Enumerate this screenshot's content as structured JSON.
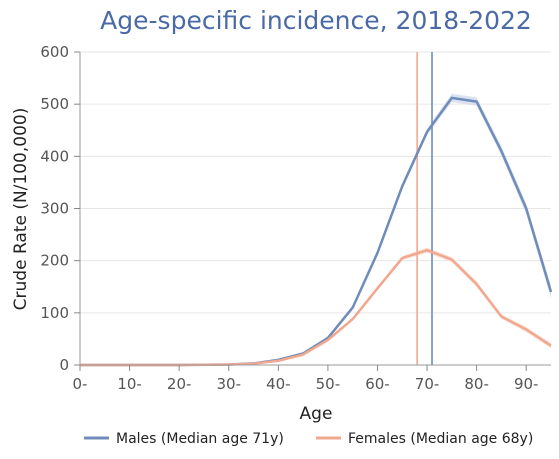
{
  "chart_data": {
    "type": "line",
    "title": "Age-specific incidence, 2018-2022",
    "xlabel": "Age",
    "ylabel": "Crude Rate (N/100,000)",
    "x": [
      0,
      5,
      10,
      15,
      20,
      25,
      30,
      35,
      40,
      45,
      50,
      55,
      60,
      65,
      70,
      75,
      80,
      85,
      90,
      95
    ],
    "xlim": [
      0,
      95
    ],
    "ylim": [
      0,
      600
    ],
    "x_ticks": [
      {
        "value": 0,
        "label": "0-"
      },
      {
        "value": 10,
        "label": "10-"
      },
      {
        "value": 20,
        "label": "20-"
      },
      {
        "value": 30,
        "label": "30-"
      },
      {
        "value": 40,
        "label": "40-"
      },
      {
        "value": 50,
        "label": "50-"
      },
      {
        "value": 60,
        "label": "60-"
      },
      {
        "value": 70,
        "label": "70-"
      },
      {
        "value": 80,
        "label": "80-"
      },
      {
        "value": 90,
        "label": "90-"
      }
    ],
    "y_ticks": [
      {
        "value": 0,
        "label": "0"
      },
      {
        "value": 100,
        "label": "100"
      },
      {
        "value": 200,
        "label": "200"
      },
      {
        "value": 300,
        "label": "300"
      },
      {
        "value": 400,
        "label": "400"
      },
      {
        "value": 500,
        "label": "500"
      },
      {
        "value": 600,
        "label": "600"
      }
    ],
    "grid": true,
    "legend_position": "bottom",
    "series": [
      {
        "name": "Males (Median age 71y)",
        "color": "#6f8cba",
        "band_color": "#cdd7ea",
        "values": [
          0,
          0,
          0,
          0,
          0,
          0.5,
          1,
          3,
          10,
          22,
          52,
          110,
          215,
          343,
          447,
          512,
          505,
          410,
          300,
          140
        ],
        "lower": [
          0,
          0,
          0,
          0,
          0,
          0.3,
          0.7,
          2.5,
          9,
          20,
          49,
          106,
          210,
          337,
          441,
          504,
          497,
          401,
          290,
          128
        ],
        "upper": [
          0,
          0,
          0,
          0,
          0,
          0.7,
          1.3,
          3.5,
          11,
          24,
          55,
          114,
          220,
          349,
          453,
          520,
          513,
          419,
          310,
          152
        ],
        "median_age": 71
      },
      {
        "name": "Females (Median age 68y)",
        "color": "#f2a88f",
        "band_color": "#f8d5c9",
        "values": [
          0,
          0,
          0,
          0,
          0,
          0.5,
          1,
          2.5,
          8,
          20,
          48,
          88,
          147,
          205,
          220,
          202,
          155,
          93,
          68,
          37
        ],
        "lower": [
          0,
          0,
          0,
          0,
          0,
          0.3,
          0.7,
          2,
          7,
          18,
          45,
          85,
          143,
          201,
          215,
          197,
          150,
          89,
          63,
          32
        ],
        "upper": [
          0,
          0,
          0,
          0,
          0,
          0.7,
          1.3,
          3,
          9,
          22,
          51,
          91,
          151,
          209,
          225,
          207,
          160,
          97,
          73,
          42
        ],
        "median_age": 68
      }
    ]
  }
}
